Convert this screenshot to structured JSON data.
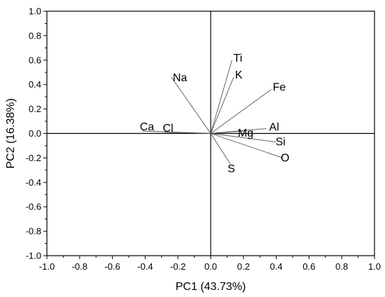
{
  "chart_data": {
    "type": "scatter",
    "subtype": "biplot-loadings",
    "title": "",
    "xlabel": "PC1 (43.73%)",
    "ylabel": "PC2 (16.38%)",
    "xlim": [
      -1.0,
      1.0
    ],
    "ylim": [
      -1.0,
      1.0
    ],
    "xticks": [
      "-1.0",
      "-0.8",
      "-0.6",
      "-0.4",
      "-0.2",
      "0.0",
      "0.2",
      "0.4",
      "0.6",
      "0.8",
      "1.0"
    ],
    "yticks": [
      "1.0",
      "0.8",
      "0.6",
      "0.4",
      "0.2",
      "0.0",
      "-0.2",
      "-0.4",
      "-0.6",
      "-0.8",
      "-1.0"
    ],
    "grid": false,
    "legend": "none",
    "colors": {
      "line": "#555555",
      "axis": "#000000",
      "text": "#000000"
    },
    "loadings": [
      {
        "name": "Ti",
        "x": 0.13,
        "y": 0.6
      },
      {
        "name": "K",
        "x": 0.14,
        "y": 0.46
      },
      {
        "name": "Na",
        "x": -0.24,
        "y": 0.46
      },
      {
        "name": "Fe",
        "x": 0.37,
        "y": 0.36
      },
      {
        "name": "Al",
        "x": 0.34,
        "y": 0.04
      },
      {
        "name": "Mg",
        "x": 0.2,
        "y": 0.02
      },
      {
        "name": "Si",
        "x": 0.4,
        "y": -0.07
      },
      {
        "name": "O",
        "x": 0.44,
        "y": -0.2
      },
      {
        "name": "S",
        "x": 0.12,
        "y": -0.25
      },
      {
        "name": "Ca",
        "x": -0.42,
        "y": 0.02
      },
      {
        "name": "Cl",
        "x": -0.28,
        "y": 0.01
      }
    ]
  }
}
